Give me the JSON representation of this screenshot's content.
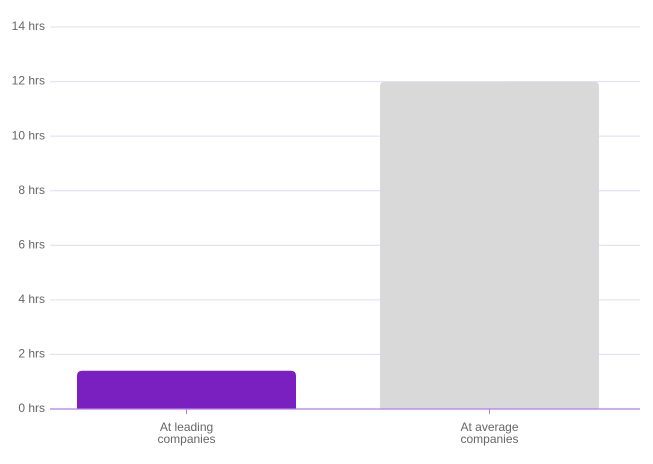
{
  "chart_data": {
    "type": "bar",
    "categories": [
      "At leading companies",
      "At average companies"
    ],
    "values": [
      1.4,
      12
    ],
    "colors": [
      "#7a1fc0",
      "#d9d9d9"
    ],
    "ylim": [
      0,
      14
    ],
    "yticks": [
      {
        "value": 0,
        "label": "0 hrs"
      },
      {
        "value": 2,
        "label": "2 hrs"
      },
      {
        "value": 4,
        "label": "4 hrs"
      },
      {
        "value": 6,
        "label": "6 hrs"
      },
      {
        "value": 8,
        "label": "8 hrs"
      },
      {
        "value": 10,
        "label": "10 hrs"
      },
      {
        "value": 12,
        "label": "12 hrs"
      },
      {
        "value": 14,
        "label": "14 hrs"
      }
    ],
    "grid": true
  }
}
